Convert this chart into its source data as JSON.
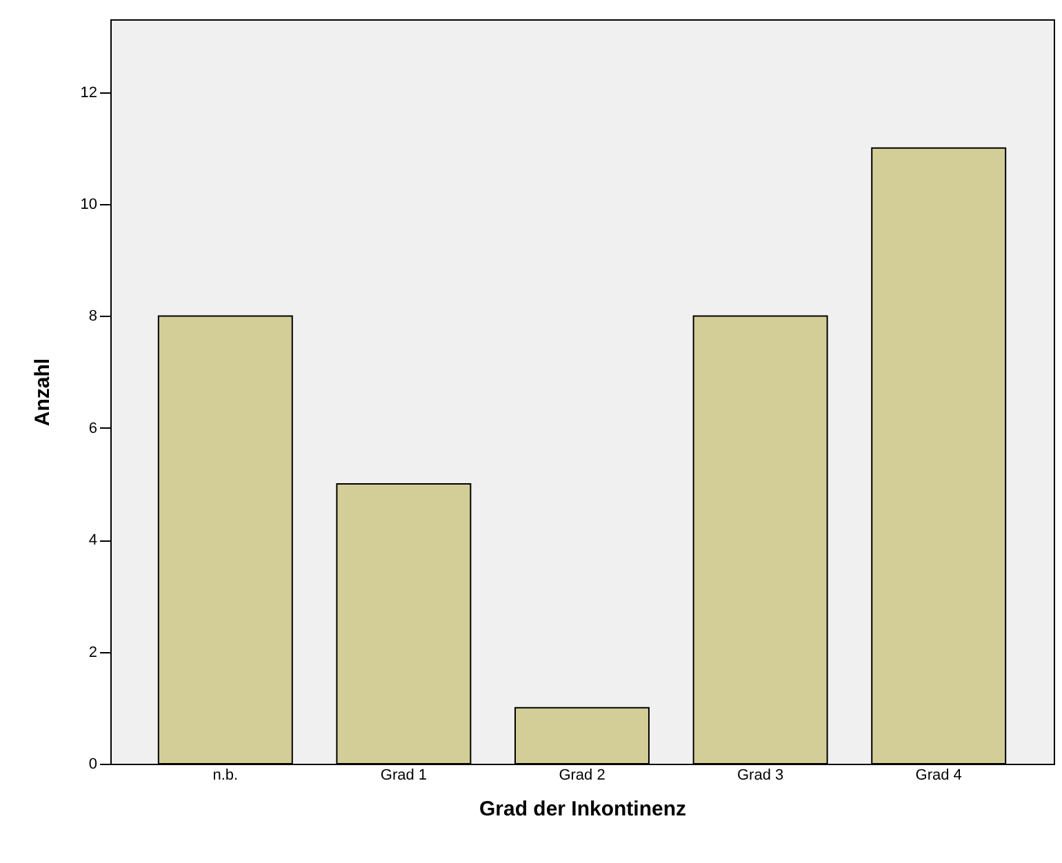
{
  "chart_data": {
    "type": "bar",
    "xlabel": "Grad der Inkontinenz",
    "ylabel": "Anzahl",
    "categories": [
      "n.b.",
      "Grad 1",
      "Grad 2",
      "Grad 3",
      "Grad 4"
    ],
    "values": [
      8,
      5,
      1,
      8,
      11
    ],
    "color": "#d3ce98",
    "ylim": [
      0,
      13.3
    ],
    "yticks": [
      0,
      2,
      4,
      6,
      8,
      10,
      12
    ],
    "grid": false
  }
}
